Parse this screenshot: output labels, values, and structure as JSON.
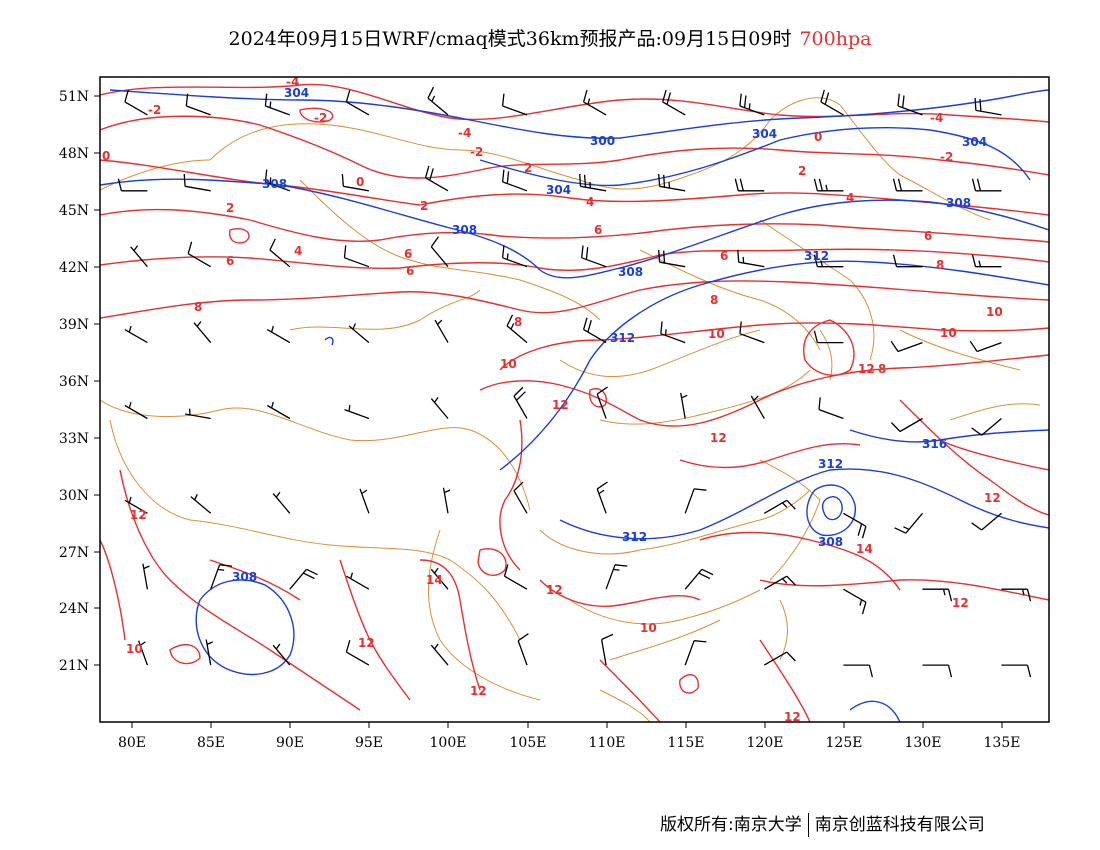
{
  "header": {
    "title": "2024年09月15日WRF/cmaq模式36km预报产品:09月15日09时",
    "level": "700hpa"
  },
  "footer": {
    "copyright": "版权所有:南京大学",
    "company": "南京创蓝科技有限公司"
  },
  "colors": {
    "height_contour": "#1a3fd6",
    "temperature_contour": "#e53030",
    "boundary": "#d8903a",
    "wind_barb": "#000000"
  },
  "map": {
    "lon_range": [
      78,
      138
    ],
    "lat_range": [
      18,
      52
    ],
    "lon_ticks": [
      "80E",
      "85E",
      "90E",
      "95E",
      "100E",
      "105E",
      "110E",
      "115E",
      "120E",
      "125E",
      "130E",
      "135E"
    ],
    "lat_ticks": [
      "51N",
      "48N",
      "45N",
      "42N",
      "39N",
      "36N",
      "33N",
      "30N",
      "27N",
      "24N",
      "21N"
    ],
    "height_labels": [
      "304",
      "300",
      "304",
      "304",
      "308",
      "308",
      "304",
      "308",
      "308",
      "312",
      "312",
      "312",
      "316",
      "308",
      "312",
      "308"
    ],
    "temp_labels": [
      "-4",
      "-2",
      "-2",
      "0",
      "-2",
      "-4",
      "0",
      "0",
      "-2",
      "-4",
      "2",
      "2",
      "2",
      "2",
      "4",
      "4",
      "4",
      "6",
      "6",
      "6",
      "6",
      "6",
      "6",
      "8",
      "8",
      "8",
      "8",
      "8",
      "10",
      "10",
      "10",
      "10",
      "12",
      "12",
      "12",
      "12",
      "12",
      "12",
      "12",
      "12",
      "12",
      "12",
      "14",
      "14",
      "10",
      "10"
    ],
    "wind_barbs": [
      {
        "lon": 81,
        "lat": 50,
        "dir": 300,
        "speed": 10
      },
      {
        "lon": 85,
        "lat": 50,
        "dir": 290,
        "speed": 10
      },
      {
        "lon": 90,
        "lat": 50,
        "dir": 290,
        "speed": 15
      },
      {
        "lon": 95,
        "lat": 50,
        "dir": 300,
        "speed": 10
      },
      {
        "lon": 100,
        "lat": 50,
        "dir": 310,
        "speed": 15
      },
      {
        "lon": 105,
        "lat": 50,
        "dir": 290,
        "speed": 10
      },
      {
        "lon": 110,
        "lat": 50,
        "dir": 300,
        "speed": 15
      },
      {
        "lon": 115,
        "lat": 50,
        "dir": 300,
        "speed": 20
      },
      {
        "lon": 120,
        "lat": 50,
        "dir": 290,
        "speed": 25
      },
      {
        "lon": 125,
        "lat": 50,
        "dir": 300,
        "speed": 20
      },
      {
        "lon": 130,
        "lat": 50,
        "dir": 290,
        "speed": 20
      },
      {
        "lon": 135,
        "lat": 50,
        "dir": 280,
        "speed": 20
      },
      {
        "lon": 81,
        "lat": 46,
        "dir": 270,
        "speed": 10
      },
      {
        "lon": 85,
        "lat": 46,
        "dir": 280,
        "speed": 10
      },
      {
        "lon": 90,
        "lat": 46,
        "dir": 290,
        "speed": 15
      },
      {
        "lon": 95,
        "lat": 46,
        "dir": 280,
        "speed": 10
      },
      {
        "lon": 100,
        "lat": 46,
        "dir": 300,
        "speed": 20
      },
      {
        "lon": 105,
        "lat": 46,
        "dir": 290,
        "speed": 20
      },
      {
        "lon": 110,
        "lat": 46,
        "dir": 280,
        "speed": 25
      },
      {
        "lon": 115,
        "lat": 46,
        "dir": 280,
        "speed": 25
      },
      {
        "lon": 120,
        "lat": 46,
        "dir": 270,
        "speed": 20
      },
      {
        "lon": 125,
        "lat": 46,
        "dir": 270,
        "speed": 25
      },
      {
        "lon": 130,
        "lat": 46,
        "dir": 270,
        "speed": 20
      },
      {
        "lon": 135,
        "lat": 46,
        "dir": 270,
        "speed": 20
      },
      {
        "lon": 81,
        "lat": 42,
        "dir": 320,
        "speed": 5
      },
      {
        "lon": 85,
        "lat": 42,
        "dir": 300,
        "speed": 10
      },
      {
        "lon": 90,
        "lat": 42,
        "dir": 310,
        "speed": 10
      },
      {
        "lon": 95,
        "lat": 42,
        "dir": 290,
        "speed": 10
      },
      {
        "lon": 100,
        "lat": 42,
        "dir": 320,
        "speed": 10
      },
      {
        "lon": 105,
        "lat": 42,
        "dir": 290,
        "speed": 15
      },
      {
        "lon": 110,
        "lat": 42,
        "dir": 290,
        "speed": 20
      },
      {
        "lon": 115,
        "lat": 42,
        "dir": 280,
        "speed": 20
      },
      {
        "lon": 120,
        "lat": 42,
        "dir": 280,
        "speed": 15
      },
      {
        "lon": 125,
        "lat": 42,
        "dir": 270,
        "speed": 15
      },
      {
        "lon": 130,
        "lat": 42,
        "dir": 270,
        "speed": 10
      },
      {
        "lon": 135,
        "lat": 42,
        "dir": 270,
        "speed": 15
      },
      {
        "lon": 81,
        "lat": 38,
        "dir": 300,
        "speed": 5
      },
      {
        "lon": 85,
        "lat": 38,
        "dir": 320,
        "speed": 5
      },
      {
        "lon": 90,
        "lat": 38,
        "dir": 300,
        "speed": 5
      },
      {
        "lon": 95,
        "lat": 38,
        "dir": 310,
        "speed": 5
      },
      {
        "lon": 100,
        "lat": 38,
        "dir": 330,
        "speed": 5
      },
      {
        "lon": 105,
        "lat": 38,
        "dir": 310,
        "speed": 15
      },
      {
        "lon": 110,
        "lat": 38,
        "dir": 300,
        "speed": 20
      },
      {
        "lon": 115,
        "lat": 38,
        "dir": 290,
        "speed": 15
      },
      {
        "lon": 120,
        "lat": 38,
        "dir": 290,
        "speed": 10
      },
      {
        "lon": 125,
        "lat": 38,
        "dir": 270,
        "speed": 10
      },
      {
        "lon": 130,
        "lat": 38,
        "dir": 250,
        "speed": 10
      },
      {
        "lon": 135,
        "lat": 38,
        "dir": 250,
        "speed": 10
      },
      {
        "lon": 81,
        "lat": 34,
        "dir": 300,
        "speed": 5
      },
      {
        "lon": 85,
        "lat": 34,
        "dir": 280,
        "speed": 5
      },
      {
        "lon": 90,
        "lat": 34,
        "dir": 300,
        "speed": 5
      },
      {
        "lon": 95,
        "lat": 34,
        "dir": 290,
        "speed": 5
      },
      {
        "lon": 100,
        "lat": 34,
        "dir": 320,
        "speed": 5
      },
      {
        "lon": 105,
        "lat": 34,
        "dir": 330,
        "speed": 20
      },
      {
        "lon": 110,
        "lat": 34,
        "dir": 340,
        "speed": 10
      },
      {
        "lon": 115,
        "lat": 34,
        "dir": 350,
        "speed": 5
      },
      {
        "lon": 120,
        "lat": 34,
        "dir": 330,
        "speed": 5
      },
      {
        "lon": 125,
        "lat": 34,
        "dir": 290,
        "speed": 10
      },
      {
        "lon": 130,
        "lat": 34,
        "dir": 240,
        "speed": 10
      },
      {
        "lon": 135,
        "lat": 34,
        "dir": 230,
        "speed": 10
      },
      {
        "lon": 81,
        "lat": 29,
        "dir": 300,
        "speed": 5
      },
      {
        "lon": 85,
        "lat": 29,
        "dir": 310,
        "speed": 5
      },
      {
        "lon": 90,
        "lat": 29,
        "dir": 320,
        "speed": 5
      },
      {
        "lon": 95,
        "lat": 29,
        "dir": 340,
        "speed": 5
      },
      {
        "lon": 100,
        "lat": 29,
        "dir": 350,
        "speed": 5
      },
      {
        "lon": 105,
        "lat": 29,
        "dir": 330,
        "speed": 10
      },
      {
        "lon": 110,
        "lat": 29,
        "dir": 340,
        "speed": 15
      },
      {
        "lon": 115,
        "lat": 29,
        "dir": 20,
        "speed": 10
      },
      {
        "lon": 120,
        "lat": 29,
        "dir": 60,
        "speed": 15
      },
      {
        "lon": 125,
        "lat": 29,
        "dir": 120,
        "speed": 20
      },
      {
        "lon": 130,
        "lat": 29,
        "dir": 220,
        "speed": 15
      },
      {
        "lon": 135,
        "lat": 29,
        "dir": 230,
        "speed": 10
      },
      {
        "lon": 81,
        "lat": 25,
        "dir": 350,
        "speed": 5
      },
      {
        "lon": 85,
        "lat": 25,
        "dir": 20,
        "speed": 15
      },
      {
        "lon": 90,
        "lat": 25,
        "dir": 40,
        "speed": 20
      },
      {
        "lon": 95,
        "lat": 25,
        "dir": 300,
        "speed": 5
      },
      {
        "lon": 100,
        "lat": 25,
        "dir": 320,
        "speed": 5
      },
      {
        "lon": 105,
        "lat": 25,
        "dir": 300,
        "speed": 10
      },
      {
        "lon": 110,
        "lat": 25,
        "dir": 20,
        "speed": 15
      },
      {
        "lon": 115,
        "lat": 25,
        "dir": 40,
        "speed": 20
      },
      {
        "lon": 120,
        "lat": 25,
        "dir": 60,
        "speed": 15
      },
      {
        "lon": 125,
        "lat": 25,
        "dir": 120,
        "speed": 15
      },
      {
        "lon": 130,
        "lat": 25,
        "dir": 90,
        "speed": 15
      },
      {
        "lon": 135,
        "lat": 25,
        "dir": 90,
        "speed": 15
      },
      {
        "lon": 81,
        "lat": 21,
        "dir": 340,
        "speed": 5
      },
      {
        "lon": 85,
        "lat": 21,
        "dir": 350,
        "speed": 5
      },
      {
        "lon": 90,
        "lat": 21,
        "dir": 320,
        "speed": 5
      },
      {
        "lon": 95,
        "lat": 21,
        "dir": 300,
        "speed": 10
      },
      {
        "lon": 100,
        "lat": 21,
        "dir": 320,
        "speed": 5
      },
      {
        "lon": 105,
        "lat": 21,
        "dir": 340,
        "speed": 10
      },
      {
        "lon": 110,
        "lat": 21,
        "dir": 350,
        "speed": 10
      },
      {
        "lon": 115,
        "lat": 21,
        "dir": 20,
        "speed": 10
      },
      {
        "lon": 120,
        "lat": 21,
        "dir": 60,
        "speed": 10
      },
      {
        "lon": 125,
        "lat": 21,
        "dir": 90,
        "speed": 10
      },
      {
        "lon": 130,
        "lat": 21,
        "dir": 90,
        "speed": 10
      },
      {
        "lon": 135,
        "lat": 21,
        "dir": 90,
        "speed": 10
      }
    ]
  }
}
